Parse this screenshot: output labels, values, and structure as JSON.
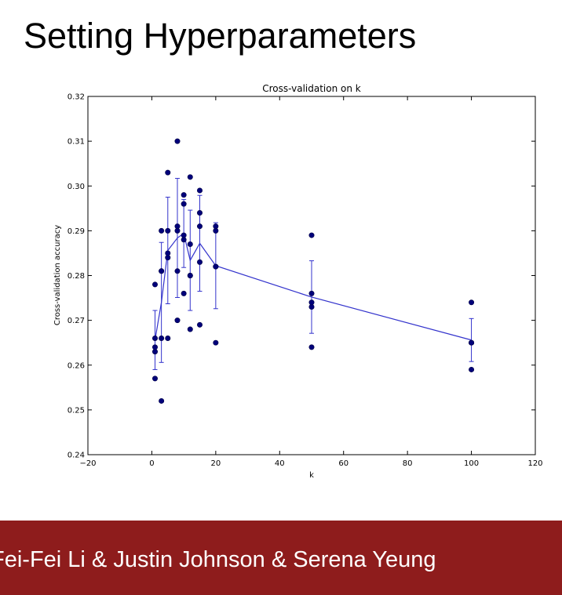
{
  "slide": {
    "title": "Setting Hyperparameters",
    "footer": "Fei-Fei Li & Justin Johnson & Serena Yeung"
  },
  "colors": {
    "footer_bg": "#8e1c1c",
    "points": "#00007a",
    "line": "#3333cc"
  },
  "chart_data": {
    "type": "scatter",
    "title": "Cross-validation on k",
    "xlabel": "k",
    "ylabel": "Cross-validation accuracy",
    "xlim": [
      -20,
      120
    ],
    "ylim": [
      0.24,
      0.32
    ],
    "xticks": [
      -20,
      0,
      20,
      40,
      60,
      80,
      100,
      120
    ],
    "yticks": [
      0.24,
      0.25,
      0.26,
      0.27,
      0.28,
      0.29,
      0.3,
      0.31,
      0.32
    ],
    "ytick_labels": [
      "0.24",
      "0.25",
      "0.26",
      "0.27",
      "0.28",
      "0.29",
      "0.30",
      "0.31",
      "0.32"
    ],
    "grid": false,
    "legend": "none",
    "points": [
      {
        "k": 1,
        "acc": 0.263
      },
      {
        "k": 1,
        "acc": 0.257
      },
      {
        "k": 1,
        "acc": 0.264
      },
      {
        "k": 1,
        "acc": 0.266
      },
      {
        "k": 1,
        "acc": 0.278
      },
      {
        "k": 3,
        "acc": 0.252
      },
      {
        "k": 3,
        "acc": 0.266
      },
      {
        "k": 3,
        "acc": 0.281
      },
      {
        "k": 3,
        "acc": 0.29
      },
      {
        "k": 3,
        "acc": 0.281
      },
      {
        "k": 5,
        "acc": 0.266
      },
      {
        "k": 5,
        "acc": 0.284
      },
      {
        "k": 5,
        "acc": 0.285
      },
      {
        "k": 5,
        "acc": 0.29
      },
      {
        "k": 5,
        "acc": 0.303
      },
      {
        "k": 8,
        "acc": 0.27
      },
      {
        "k": 8,
        "acc": 0.281
      },
      {
        "k": 8,
        "acc": 0.29
      },
      {
        "k": 8,
        "acc": 0.291
      },
      {
        "k": 8,
        "acc": 0.31
      },
      {
        "k": 10,
        "acc": 0.276
      },
      {
        "k": 10,
        "acc": 0.288
      },
      {
        "k": 10,
        "acc": 0.289
      },
      {
        "k": 10,
        "acc": 0.296
      },
      {
        "k": 10,
        "acc": 0.298
      },
      {
        "k": 12,
        "acc": 0.268
      },
      {
        "k": 12,
        "acc": 0.28
      },
      {
        "k": 12,
        "acc": 0.28
      },
      {
        "k": 12,
        "acc": 0.287
      },
      {
        "k": 12,
        "acc": 0.302
      },
      {
        "k": 15,
        "acc": 0.269
      },
      {
        "k": 15,
        "acc": 0.283
      },
      {
        "k": 15,
        "acc": 0.291
      },
      {
        "k": 15,
        "acc": 0.294
      },
      {
        "k": 15,
        "acc": 0.299
      },
      {
        "k": 20,
        "acc": 0.265
      },
      {
        "k": 20,
        "acc": 0.282
      },
      {
        "k": 20,
        "acc": 0.29
      },
      {
        "k": 20,
        "acc": 0.291
      },
      {
        "k": 20,
        "acc": 0.282
      },
      {
        "k": 50,
        "acc": 0.264
      },
      {
        "k": 50,
        "acc": 0.273
      },
      {
        "k": 50,
        "acc": 0.274
      },
      {
        "k": 50,
        "acc": 0.276
      },
      {
        "k": 50,
        "acc": 0.289
      },
      {
        "k": 100,
        "acc": 0.259
      },
      {
        "k": 100,
        "acc": 0.265
      },
      {
        "k": 100,
        "acc": 0.265
      },
      {
        "k": 100,
        "acc": 0.265
      },
      {
        "k": 100,
        "acc": 0.274
      }
    ],
    "trend": {
      "k": [
        1,
        3,
        5,
        8,
        10,
        12,
        15,
        20,
        50,
        100
      ],
      "mean": [
        0.2656,
        0.274,
        0.2856,
        0.2884,
        0.2894,
        0.2834,
        0.2872,
        0.2822,
        0.2752,
        0.2656
      ],
      "err": [
        0.0066,
        0.0134,
        0.0119,
        0.0133,
        0.0076,
        0.0112,
        0.0107,
        0.0096,
        0.0081,
        0.0048
      ]
    }
  }
}
